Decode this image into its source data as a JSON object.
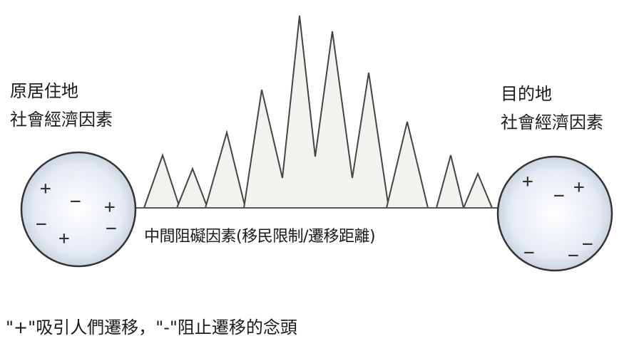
{
  "origin": {
    "title": "原居住地",
    "subtitle": "社會經濟因素"
  },
  "destination": {
    "title": "目的地",
    "subtitle": "社會經濟因素"
  },
  "obstacles": {
    "label": "中間阻礙因素(移民限制/遷移距離)"
  },
  "legend": {
    "note": "\"+\"吸引人們遷移，\"-\"阻止遷移的念頭"
  },
  "origin_signs": [
    "+",
    "−",
    "+",
    "−",
    "−",
    "+"
  ],
  "destination_signs": [
    "+",
    "−",
    "+",
    "−",
    "−",
    "−"
  ],
  "colors": {
    "peak_fill": "#f2f2ee",
    "line": "#444444",
    "circle_fill_center": "#ffffff",
    "circle_fill_edge": "#c4cede"
  }
}
